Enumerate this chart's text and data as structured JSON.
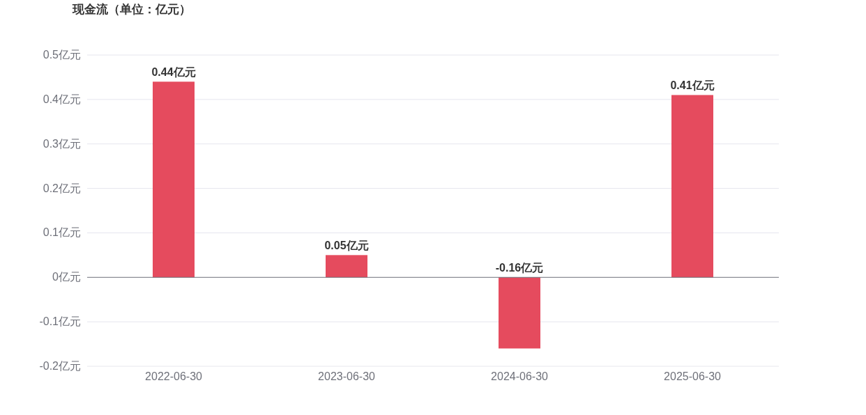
{
  "chart_data": {
    "type": "bar",
    "title": "现金流（单位：亿元）",
    "categories": [
      "2022-06-30",
      "2023-06-30",
      "2024-06-30",
      "2025-06-30"
    ],
    "values": [
      0.44,
      0.05,
      -0.16,
      0.41
    ],
    "color": "#e54b5e",
    "value_labels": [
      "0.44亿元",
      "0.05亿元",
      "-0.16亿元",
      "0.41亿元"
    ],
    "ylim": [
      -0.2,
      0.5
    ],
    "yticks": [
      {
        "value": -0.2,
        "label": "-0.2亿元"
      },
      {
        "value": -0.1,
        "label": "-0.1亿元"
      },
      {
        "value": 0,
        "label": "0亿元"
      },
      {
        "value": 0.1,
        "label": "0.1亿元"
      },
      {
        "value": 0.2,
        "label": "0.2亿元"
      },
      {
        "value": 0.3,
        "label": "0.3亿元"
      },
      {
        "value": 0.4,
        "label": "0.4亿元"
      },
      {
        "value": 0.5,
        "label": "0.5亿元"
      }
    ],
    "grid": "y"
  }
}
